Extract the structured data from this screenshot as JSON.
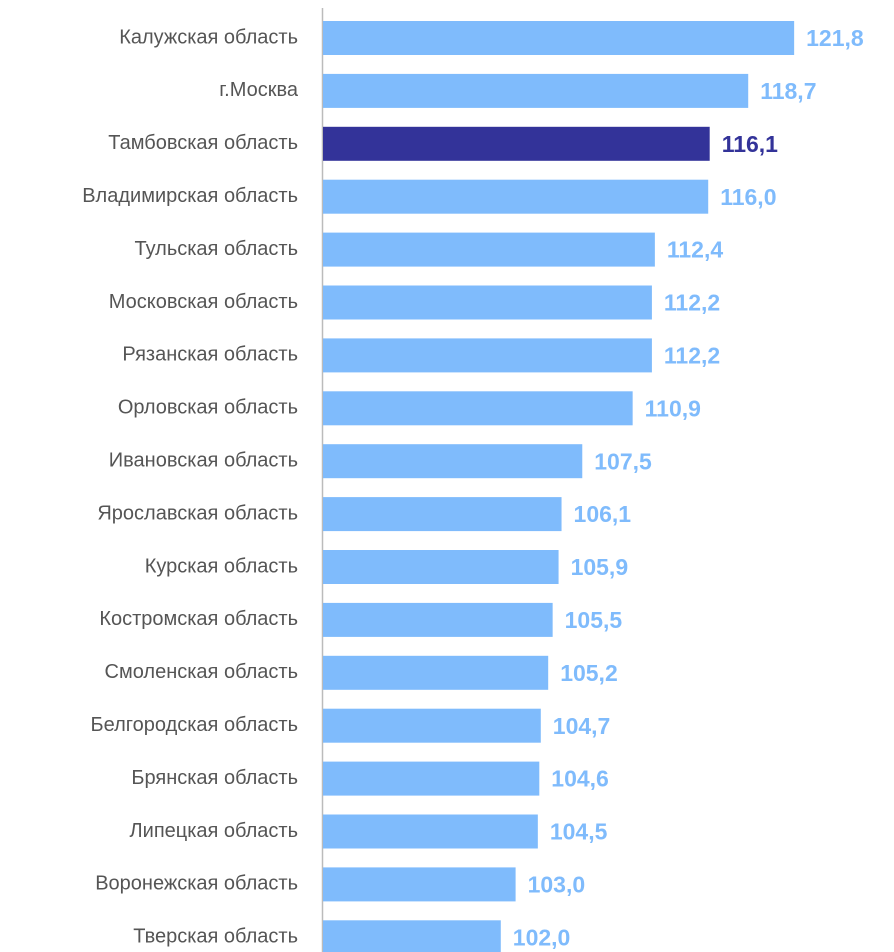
{
  "chart_data": {
    "type": "barh",
    "categories": [
      "Калужская область",
      "г.Москва",
      "Тамбовская область",
      "Владимирская область",
      "Тульская область",
      "Московская область",
      "Рязанская область",
      "Орловская область",
      "Ивановская область",
      "Ярославская область",
      "Курская область",
      "Костромская область",
      "Смоленская область",
      "Белгородская область",
      "Брянская область",
      "Липецкая область",
      "Воронежская область",
      "Тверская область"
    ],
    "values": [
      121.8,
      118.7,
      116.1,
      116.0,
      112.4,
      112.2,
      112.2,
      110.9,
      107.5,
      106.1,
      105.9,
      105.5,
      105.2,
      104.7,
      104.6,
      104.5,
      103.0,
      102.0
    ],
    "value_labels": [
      "121,8",
      "118,7",
      "116,1",
      "116,0",
      "112,4",
      "112,2",
      "112,2",
      "110,9",
      "107,5",
      "106,1",
      "105,9",
      "105,5",
      "105,2",
      "104,7",
      "104,6",
      "104,5",
      "103,0",
      "102,0"
    ],
    "colors": [
      "#7fbbfc",
      "#7fbbfc",
      "#333399",
      "#7fbbfc",
      "#7fbbfc",
      "#7fbbfc",
      "#7fbbfc",
      "#7fbbfc",
      "#7fbbfc",
      "#7fbbfc",
      "#7fbbfc",
      "#7fbbfc",
      "#7fbbfc",
      "#7fbbfc",
      "#7fbbfc",
      "#7fbbfc",
      "#7fbbfc",
      "#7fbbfc"
    ],
    "xlim": [
      90,
      128
    ]
  }
}
